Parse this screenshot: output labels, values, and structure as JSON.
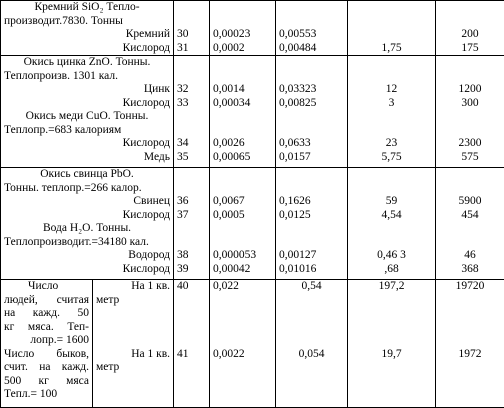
{
  "sections": [
    {
      "title_lines": [
        "Кремний SiO₂ Тепло-",
        "производит.7830. Тонны"
      ],
      "rows": [
        {
          "name": "Кремний",
          "n": "30",
          "a": "0,00023",
          "b": "0,00553",
          "c": "",
          "d": "200"
        },
        {
          "name": "Кислород",
          "n": "31",
          "a": "0,0002",
          "b": "0,00484",
          "c": "1,75",
          "d": "175"
        }
      ]
    },
    {
      "title_lines": [
        "Окись цинка ZnO. Тонны.",
        "Теплопроизв. 1301 кал."
      ],
      "rows": [
        {
          "name": "Цинк",
          "n": "32",
          "a": "0,0014",
          "b": "0,03323",
          "c": "12",
          "d": "1200"
        },
        {
          "name": "Кислород",
          "n": "33",
          "a": "0,00034",
          "b": "0,00825",
          "c": "3",
          "d": "300"
        }
      ],
      "sub_title_lines": [
        "Окись меди CuO. Тонны.",
        "Теплопр.=683 калориям"
      ],
      "sub_rows": [
        {
          "name": "Кислород",
          "n": "34",
          "a": "0,0026",
          "b": "0,0633",
          "c": "23",
          "d": "2300"
        },
        {
          "name": "Медь",
          "n": "35",
          "a": "0,00065",
          "b": "0,0157",
          "c": "5,75",
          "d": "575"
        }
      ]
    },
    {
      "title_lines": [
        "Окись свинца PbO.",
        "Тонны. теплопр.=266 калор."
      ],
      "rows": [
        {
          "name": "Свинец",
          "n": "36",
          "a": "0,0067",
          "b": "0,1626",
          "c": "59",
          "d": "5900"
        },
        {
          "name": "Кислород",
          "n": "37",
          "a": "0,0005",
          "b": "0,0125",
          "c": "4,54",
          "d": "454"
        }
      ],
      "sub_title_lines": [
        "Вода H₂O. Тонны.",
        "Теплопроизводит.=34180 кал."
      ],
      "sub_rows": [
        {
          "name": "Водород",
          "n": "38",
          "a": "0,000053",
          "b": "0,00127",
          "c": "0,46 3",
          "d": "46"
        },
        {
          "name": "Кислород",
          "n": "39",
          "a": "0,00042",
          "b": "0,01016",
          "c": ",68",
          "d": "368"
        }
      ]
    }
  ],
  "bottom": [
    {
      "desc_lines": [
        "Число",
        "людей, считая",
        "на кажд. 50",
        "кг мяса. Теп-",
        "лопр.= 1600"
      ],
      "unit_lines": [
        "На 1 кв.",
        "метр"
      ],
      "n": "40",
      "a": "0,022",
      "b": "0,54",
      "c": "197,2",
      "d": "19720"
    },
    {
      "desc_lines": [
        "Число быков,",
        "счит. на кажд.",
        "500 кг мяса",
        "Тепл.= 100"
      ],
      "unit_lines": [
        "На 1 кв.",
        "метр"
      ],
      "n": "41",
      "a": "0,0022",
      "b": "0,054",
      "c": "19,7",
      "d": "1972"
    }
  ]
}
